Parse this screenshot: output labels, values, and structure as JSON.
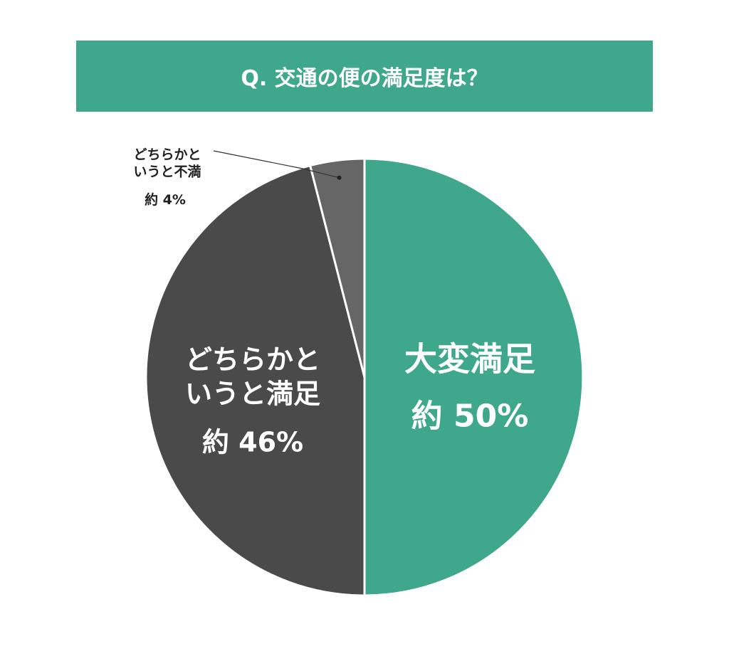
{
  "chart_data": {
    "type": "pie",
    "title": "Q. 交通の便の満足度は？",
    "categories": [
      "大変満足",
      "どちらかと\nいうと満足",
      "どちらかと\nいうと不満"
    ],
    "values": [
      50,
      46,
      4
    ],
    "value_labels": [
      "約 50%",
      "約 46%",
      "約 4%"
    ],
    "colors": [
      "#3ea78c",
      "#4a4a4a",
      "#666666"
    ]
  }
}
